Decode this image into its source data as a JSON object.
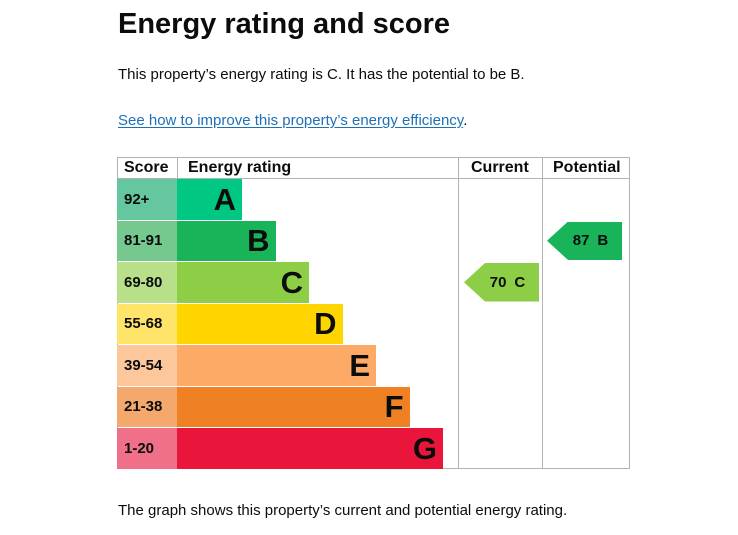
{
  "heading": "Energy rating and score",
  "summary": "This property’s energy rating is C. It has the potential to be B.",
  "improve_link": "See how to improve this property’s energy efficiency",
  "improve_link_suffix": ".",
  "footer": "The graph shows this property’s current and potential energy rating.",
  "graph": {
    "headers": {
      "score": "Score",
      "rating": "Energy rating",
      "current": "Current",
      "potential": "Potential"
    },
    "bands": [
      {
        "score": "92+",
        "letter": "A",
        "color": "#00c781",
        "score_color": "#64c7a0"
      },
      {
        "score": "81-91",
        "letter": "B",
        "color": "#19b459",
        "score_color": "#76c98e"
      },
      {
        "score": "69-80",
        "letter": "C",
        "color": "#8dce46",
        "score_color": "#b8e08b"
      },
      {
        "score": "55-68",
        "letter": "D",
        "color": "#ffd500",
        "score_color": "#ffe46a"
      },
      {
        "score": "39-54",
        "letter": "E",
        "color": "#fcaa65",
        "score_color": "#fdc79c"
      },
      {
        "score": "21-38",
        "letter": "F",
        "color": "#ef8023",
        "score_color": "#f5a86b"
      },
      {
        "score": "1-20",
        "letter": "G",
        "color": "#e9153b",
        "score_color": "#f0708a"
      }
    ],
    "current": {
      "value": "70",
      "letter": "C",
      "color": "#8dce46"
    },
    "potential": {
      "value": "87",
      "letter": "B",
      "color": "#19b459"
    }
  }
}
